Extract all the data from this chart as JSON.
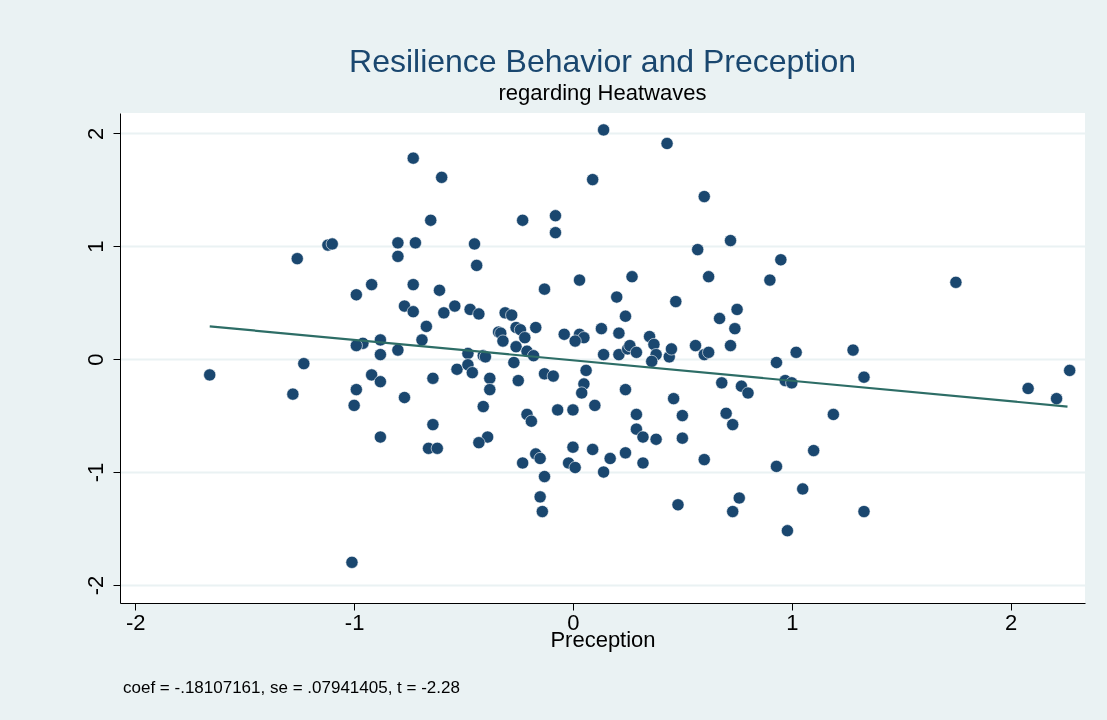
{
  "chart_data": {
    "type": "scatter",
    "title": "Resilience Behavior and Preception",
    "subtitle": "regarding Heatwaves",
    "xlabel": "Preception",
    "annotations": [
      "coef = -.18107161, se = .07941405, t = -2.28"
    ],
    "xlim": [
      -2.07,
      2.34
    ],
    "ylim": [
      -2.16,
      2.18
    ],
    "xticks": [
      -2,
      -1,
      0,
      1,
      2
    ],
    "yticks": [
      -2,
      -1,
      0,
      1,
      2
    ],
    "grid": "y",
    "legend": false,
    "marker": "circle",
    "series": [
      {
        "type": "scatter",
        "color": "#1a476f",
        "x": [
          0.14,
          0.43,
          -0.73,
          -0.6,
          0.09,
          0.6,
          -0.65,
          -0.23,
          -0.08,
          -0.08,
          -1.12,
          -1.1,
          -0.8,
          -0.72,
          -0.45,
          -0.8,
          0.57,
          0.72,
          -1.26,
          -0.44,
          0.95,
          -0.99,
          -0.92,
          -0.73,
          -0.61,
          -0.13,
          0.03,
          0.27,
          0.62,
          1.75,
          0.9,
          0.47,
          0.75,
          -0.77,
          -0.73,
          -0.54,
          -0.59,
          -0.47,
          -0.43,
          -0.31,
          -0.28,
          -0.34,
          -0.67,
          0.2,
          0.24,
          0.13,
          0.67,
          0.74,
          -0.33,
          -0.26,
          -0.24,
          -0.17,
          -0.32,
          -0.04,
          0.03,
          0.05,
          0.21,
          0.35,
          -0.88,
          -0.96,
          -0.99,
          -0.69,
          -0.8,
          -0.88,
          -1.23,
          -1.66,
          -0.48,
          -0.41,
          -0.4,
          -0.53,
          -0.48,
          -0.27,
          -0.26,
          -0.21,
          -0.22,
          -0.18,
          0.01,
          0.14,
          0.21,
          0.25,
          0.26,
          0.29,
          0.37,
          0.38,
          0.36,
          0.44,
          0.45,
          0.56,
          0.6,
          0.62,
          0.72,
          0.93,
          1.02,
          1.28,
          2.27,
          2.08,
          2.21,
          1.33,
          0.97,
          1.0,
          0.77,
          0.8,
          0.68,
          -0.13,
          -0.09,
          0.06,
          0.05,
          0.04,
          0.24,
          -0.38,
          -0.38,
          -0.25,
          -0.64,
          -0.46,
          -0.99,
          -0.92,
          -0.88,
          -1.28,
          -0.77,
          -1.0,
          -0.41,
          -0.07,
          0.1,
          0.0,
          -0.21,
          -0.19,
          -0.64,
          -0.88,
          -0.39,
          -0.43,
          0.29,
          0.5,
          0.7,
          0.29,
          0.32,
          0.38,
          0.5,
          0.73,
          -0.66,
          -0.62,
          0.0,
          0.09,
          -0.17,
          -0.23,
          -0.15,
          -0.02,
          0.01,
          0.17,
          0.24,
          0.32,
          0.14,
          0.6,
          0.93,
          1.1,
          -0.13,
          -0.15,
          -0.14,
          0.48,
          0.76,
          0.73,
          1.05,
          1.33,
          0.98,
          -1.01,
          1.19,
          0.46
        ],
        "values": [
          2.03,
          1.91,
          1.78,
          1.61,
          1.59,
          1.44,
          1.23,
          1.23,
          1.27,
          1.12,
          1.01,
          1.02,
          1.03,
          1.03,
          1.02,
          0.91,
          0.97,
          1.05,
          0.89,
          0.83,
          0.88,
          0.57,
          0.66,
          0.66,
          0.61,
          0.62,
          0.7,
          0.73,
          0.73,
          0.68,
          0.7,
          0.51,
          0.44,
          0.47,
          0.42,
          0.47,
          0.41,
          0.44,
          0.4,
          0.41,
          0.39,
          0.24,
          0.29,
          0.55,
          0.38,
          0.27,
          0.36,
          0.27,
          0.23,
          0.28,
          0.26,
          0.28,
          0.16,
          0.22,
          0.22,
          0.19,
          0.23,
          0.2,
          0.17,
          0.14,
          0.12,
          0.17,
          0.08,
          0.04,
          -0.04,
          -0.14,
          0.05,
          0.03,
          0.02,
          -0.09,
          -0.05,
          -0.03,
          0.11,
          0.07,
          0.19,
          0.03,
          0.16,
          0.04,
          0.04,
          0.09,
          0.12,
          0.06,
          0.13,
          0.04,
          -0.02,
          0.02,
          0.09,
          0.12,
          0.04,
          0.06,
          0.12,
          -0.03,
          0.06,
          0.08,
          -0.1,
          -0.26,
          -0.35,
          -0.16,
          -0.19,
          -0.21,
          -0.24,
          -0.3,
          -0.21,
          -0.13,
          -0.15,
          -0.1,
          -0.22,
          -0.3,
          -0.27,
          -0.17,
          -0.27,
          -0.19,
          -0.17,
          -0.12,
          -0.27,
          -0.14,
          -0.2,
          -0.31,
          -0.34,
          -0.41,
          -0.42,
          -0.45,
          -0.41,
          -0.45,
          -0.49,
          -0.55,
          -0.58,
          -0.69,
          -0.69,
          -0.74,
          -0.49,
          -0.5,
          -0.48,
          -0.62,
          -0.69,
          -0.71,
          -0.7,
          -0.58,
          -0.79,
          -0.79,
          -0.78,
          -0.8,
          -0.84,
          -0.92,
          -0.88,
          -0.92,
          -0.96,
          -0.88,
          -0.83,
          -0.92,
          -1.0,
          -0.89,
          -0.95,
          -0.81,
          -1.04,
          -1.22,
          -1.35,
          -1.29,
          -1.23,
          -1.35,
          -1.15,
          -1.35,
          -1.52,
          -1.8,
          -0.49,
          -0.35
        ]
      },
      {
        "type": "line",
        "marker": "none",
        "line_style": "solid",
        "color": "#2d6d66",
        "x": [
          -1.66,
          2.26
        ],
        "values": [
          0.29,
          -0.42
        ]
      }
    ]
  }
}
